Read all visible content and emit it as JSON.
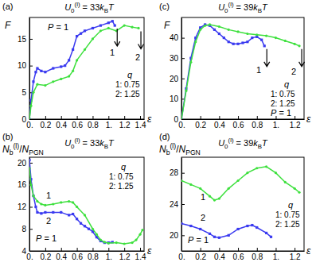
{
  "chart_data": [
    {
      "type": "line",
      "panel": "(a)",
      "title": "U0(l) = 33kBT",
      "subtitle": "P = 1",
      "x_label": "ε",
      "y_label": "F",
      "xlim": [
        0,
        1.45
      ],
      "xticks": [
        {
          "value": 0,
          "label": "0."
        },
        0.2,
        0.4,
        0.6,
        0.8,
        {
          "value": 1,
          "label": "1."
        },
        1.2,
        1.4
      ],
      "ylim": [
        0,
        19
      ],
      "yticks": [
        0,
        5,
        10,
        15
      ],
      "legend_title": "q",
      "series": [
        {
          "name": "1: 0.75",
          "label": "1",
          "color": "#3a3af0",
          "marker": "square",
          "x": [
            0,
            0.02,
            0.05,
            0.08,
            0.1,
            0.15,
            0.2,
            0.3,
            0.4,
            0.45,
            0.5,
            0.55,
            0.6,
            0.65,
            0.7,
            0.8,
            0.9,
            1.0,
            1.05,
            1.08
          ],
          "values": [
            0,
            3.5,
            7,
            8.8,
            9.5,
            9,
            8.8,
            9.5,
            9.8,
            10,
            11,
            13,
            15.5,
            16,
            16.5,
            17,
            17.5,
            18,
            18.3,
            17.5
          ]
        },
        {
          "name": "2: 1.25",
          "label": "2",
          "color": "#3ee03e",
          "marker": "circle",
          "x": [
            0,
            0.02,
            0.05,
            0.1,
            0.2,
            0.3,
            0.4,
            0.5,
            0.55,
            0.6,
            0.7,
            0.8,
            0.9,
            1.0,
            1.1,
            1.2,
            1.3,
            1.38
          ],
          "values": [
            0,
            2.5,
            5,
            6.5,
            6.3,
            7,
            7.5,
            8,
            9,
            11,
            13,
            15,
            16.5,
            17,
            16.5,
            17.5,
            17.2,
            17
          ]
        }
      ]
    },
    {
      "type": "line",
      "panel": "(b)",
      "title": "U0(l) = 33kBT",
      "subtitle": "P = 1",
      "x_label": "ε",
      "y_label": "Nb(l)/NPGN",
      "xlim": [
        0,
        1.45
      ],
      "xticks": [
        {
          "value": 0,
          "label": "0."
        },
        0.2,
        0.4,
        0.6,
        0.8,
        {
          "value": 1,
          "label": "1."
        },
        1.2,
        1.4
      ],
      "ylim": [
        4,
        21
      ],
      "yticks": [
        4,
        8,
        12,
        16,
        20
      ],
      "legend_title": "q",
      "series": [
        {
          "name": "1: 0.75",
          "label": "1",
          "color": "#3a3af0",
          "marker": "square",
          "x": [
            0,
            0.02,
            0.05,
            0.08,
            0.1,
            0.15,
            0.2,
            0.3,
            0.4,
            0.5,
            0.55,
            0.6,
            0.65,
            0.7,
            0.75,
            0.8,
            0.85,
            0.9,
            0.95,
            1.0,
            1.05
          ],
          "values": [
            20.5,
            17,
            14,
            12,
            11,
            10.8,
            11,
            11,
            11,
            10.5,
            10.7,
            9.8,
            9,
            8.5,
            8,
            7.5,
            6.5,
            5.8,
            5.5,
            5.5,
            5.6
          ]
        },
        {
          "name": "2: 1.25",
          "label": "2",
          "color": "#3ee03e",
          "marker": "circle",
          "x": [
            0,
            0.02,
            0.05,
            0.1,
            0.15,
            0.2,
            0.3,
            0.4,
            0.5,
            0.55,
            0.6,
            0.7,
            0.8,
            0.85,
            0.9,
            0.95,
            1.0,
            1.1,
            1.2,
            1.3,
            1.35,
            1.4,
            1.43
          ],
          "values": [
            19,
            16,
            14,
            13,
            12.5,
            12.3,
            12.5,
            12.8,
            13,
            12.8,
            12,
            10.5,
            8,
            7,
            6,
            5.6,
            5.4,
            5.5,
            5.3,
            5.5,
            6,
            7,
            7.8
          ]
        }
      ]
    },
    {
      "type": "line",
      "panel": "(c)",
      "title": "U0(l) = 39kBT",
      "subtitle": "P = 1",
      "x_label": "ε",
      "y_label": "F",
      "xlim": [
        0,
        1.3
      ],
      "xticks": [
        {
          "value": 0,
          "label": "0."
        },
        0.2,
        0.4,
        0.6,
        0.8,
        {
          "value": 1,
          "label": "1."
        },
        1.2
      ],
      "ylim": [
        0,
        50
      ],
      "yticks": [
        0,
        10,
        20,
        30,
        40
      ],
      "legend_title": "q",
      "series": [
        {
          "name": "1: 0.75",
          "label": "1",
          "color": "#3a3af0",
          "marker": "square",
          "x": [
            0,
            0.05,
            0.1,
            0.15,
            0.2,
            0.25,
            0.3,
            0.35,
            0.4,
            0.45,
            0.5,
            0.55,
            0.6,
            0.65,
            0.7,
            0.75,
            0.8,
            0.85,
            0.88
          ],
          "values": [
            0,
            15,
            30,
            40,
            45,
            46.5,
            46,
            44,
            42,
            40,
            38,
            37,
            37,
            37.5,
            38,
            40,
            40.5,
            39,
            36
          ]
        },
        {
          "name": "2: 1.25",
          "label": "2",
          "color": "#3ee03e",
          "marker": "circle",
          "x": [
            0,
            0.05,
            0.1,
            0.15,
            0.2,
            0.25,
            0.3,
            0.4,
            0.5,
            0.6,
            0.7,
            0.8,
            0.9,
            1.0,
            1.1,
            1.2,
            1.25
          ],
          "values": [
            0,
            14,
            28,
            38,
            44,
            46,
            46.5,
            45.5,
            44,
            43,
            42,
            41.5,
            41,
            40,
            38.5,
            37,
            36
          ]
        }
      ]
    },
    {
      "type": "line",
      "panel": "(d)",
      "title": "U0(l) = 39kBT",
      "subtitle": "P = 1",
      "x_label": "ε",
      "y_label": "Nb(l)/NPGN",
      "xlim": [
        0,
        1.3
      ],
      "xticks": [
        {
          "value": 0,
          "label": "0."
        },
        0.2,
        0.4,
        0.6,
        0.8,
        {
          "value": 1,
          "label": "1."
        },
        1.2
      ],
      "ylim": [
        18,
        30
      ],
      "yticks": [
        20,
        24,
        28
      ],
      "legend_title": "q",
      "series": [
        {
          "name": "1: 0.75",
          "label": "1",
          "color": "#3a3af0",
          "marker": "square",
          "x": [
            0,
            0.1,
            0.2,
            0.3,
            0.35,
            0.4,
            0.5,
            0.6,
            0.7,
            0.75,
            0.8,
            0.9,
            0.95
          ],
          "values": [
            21.5,
            21.2,
            20.8,
            20.2,
            19.8,
            19.7,
            20,
            20.8,
            21.2,
            21.3,
            21,
            20.3,
            19.8
          ]
        },
        {
          "name": "2: 1.25",
          "label": "2",
          "color": "#3ee03e",
          "marker": "circle",
          "x": [
            0,
            0.1,
            0.2,
            0.3,
            0.35,
            0.4,
            0.5,
            0.6,
            0.7,
            0.8,
            0.9,
            1.0,
            1.1,
            1.2,
            1.25
          ],
          "values": [
            27,
            26.5,
            26,
            25,
            24.5,
            24.7,
            26,
            27,
            28,
            28.6,
            28.8,
            28,
            26.8,
            26,
            25.5
          ]
        }
      ]
    }
  ]
}
